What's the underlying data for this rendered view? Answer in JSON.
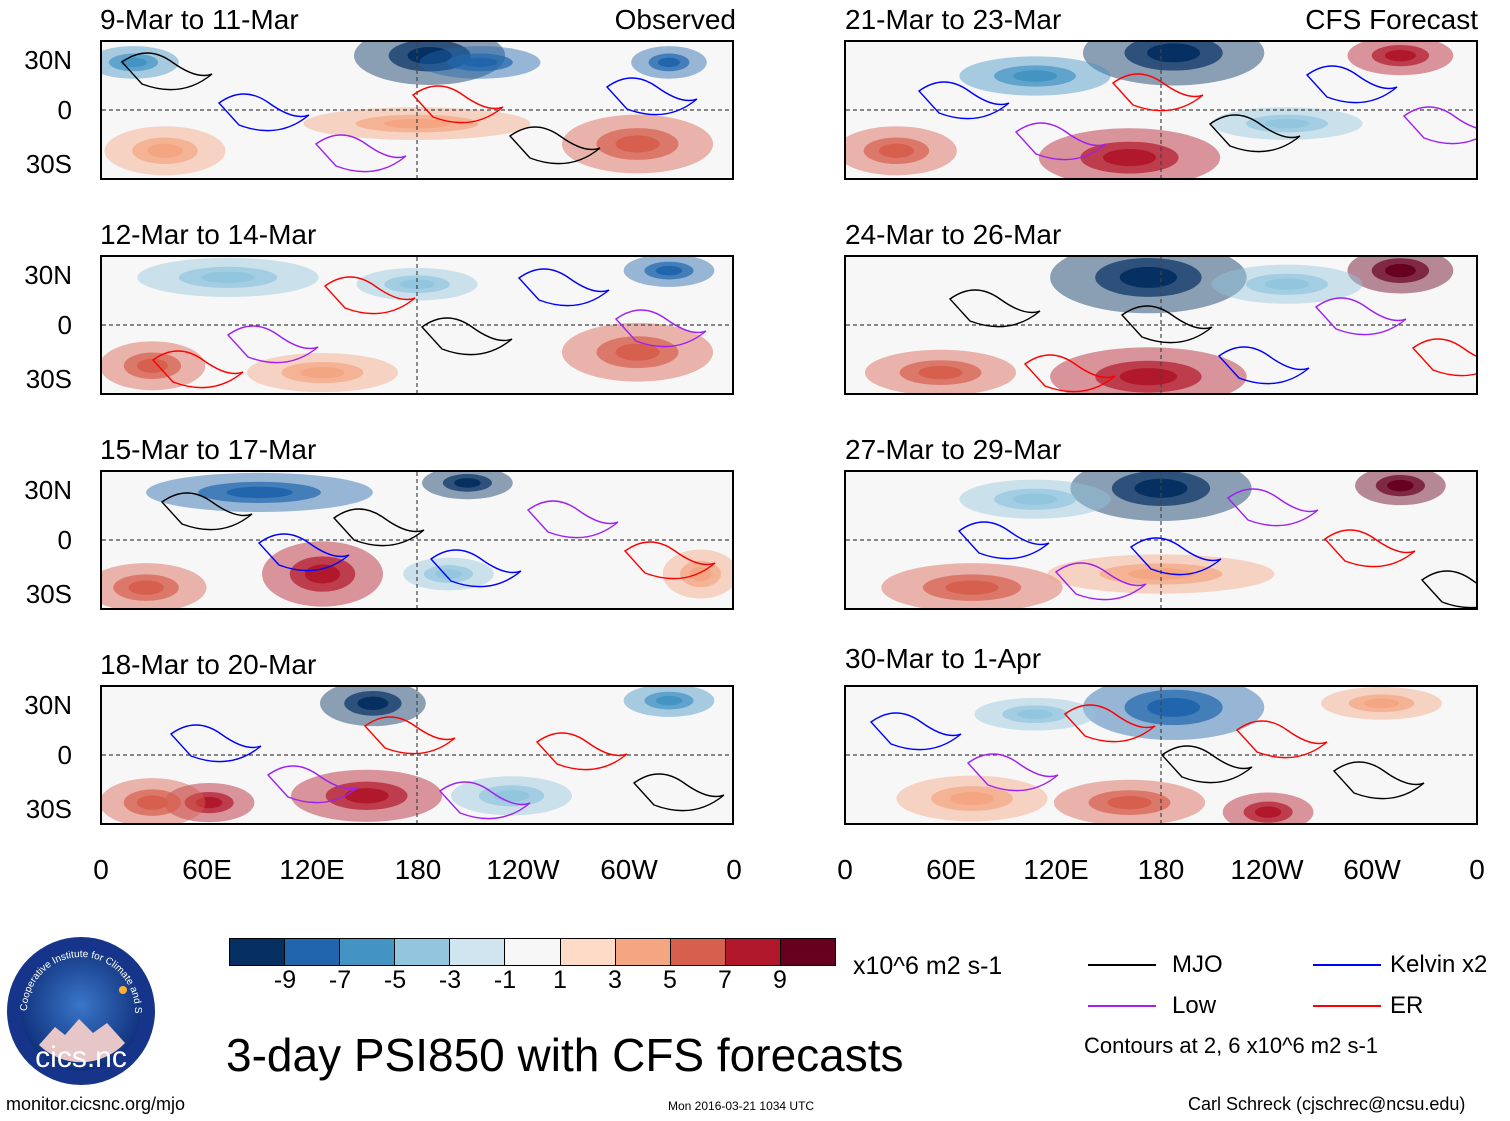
{
  "panels": [
    {
      "id": "p1",
      "title": "9-Mar to 11-Mar",
      "tag": "Observed"
    },
    {
      "id": "p2",
      "title": "21-Mar to 23-Mar",
      "tag": "CFS Forecast"
    },
    {
      "id": "p3",
      "title": "12-Mar to 14-Mar",
      "tag": ""
    },
    {
      "id": "p4",
      "title": "24-Mar to 26-Mar",
      "tag": ""
    },
    {
      "id": "p5",
      "title": "15-Mar to 17-Mar",
      "tag": ""
    },
    {
      "id": "p6",
      "title": "27-Mar to 29-Mar",
      "tag": ""
    },
    {
      "id": "p7",
      "title": "18-Mar to 20-Mar",
      "tag": ""
    },
    {
      "id": "p8",
      "title": "30-Mar to 1-Apr",
      "tag": ""
    }
  ],
  "y_axis": [
    "30N",
    "0",
    "30S"
  ],
  "x_axis": [
    "0",
    "60E",
    "120E",
    "180",
    "120W",
    "60W",
    "0"
  ],
  "colorbar": {
    "labels": [
      "-9",
      "-7",
      "-5",
      "-3",
      "-1",
      "1",
      "3",
      "5",
      "7",
      "9"
    ],
    "colors": [
      "#053061",
      "#2166ac",
      "#4393c3",
      "#92c5de",
      "#d1e5f0",
      "#f7f7f7",
      "#fddbc7",
      "#f4a582",
      "#d6604d",
      "#b2182b",
      "#67001f"
    ],
    "units": "x10^6 m2 s-1"
  },
  "legend": {
    "mjo": {
      "label": "MJO",
      "color": "#000000"
    },
    "kelvin": {
      "label": "Kelvin x2",
      "color": "#0000ff"
    },
    "low": {
      "label": "Low",
      "color": "#a020f0"
    },
    "er": {
      "label": "ER",
      "color": "#ff0000"
    },
    "contours_note": "Contours at 2, 6 x10^6 m2 s-1"
  },
  "main_title": "3-day PSI850 with CFS forecasts",
  "logo_text": "cics.nc",
  "logo_ring_text": "Cooperative Institute for Climate and Satellites",
  "footer": {
    "left": "monitor.cicsnc.org/mjo",
    "center": "Mon 2016-03-21 1034 UTC",
    "right": "Carl Schreck (cjschrec@ncsu.edu)"
  }
}
